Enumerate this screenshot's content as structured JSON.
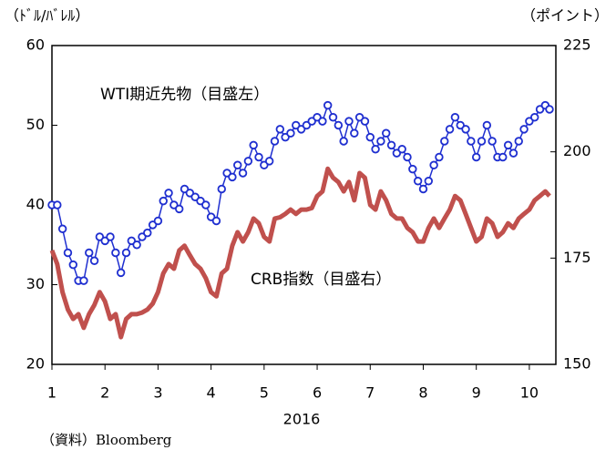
{
  "chart_data": {
    "type": "line",
    "ylabel": "（ﾄﾞﾙ/ﾊﾞﾚﾙ）",
    "y2label": "（ポイント）",
    "xlabel": "2016",
    "source": "（資料）Bloomberg",
    "x": [
      1.0,
      1.1,
      1.2,
      1.3,
      1.4,
      1.5,
      1.6,
      1.7,
      1.8,
      1.9,
      2.0,
      2.1,
      2.2,
      2.3,
      2.4,
      2.5,
      2.6,
      2.7,
      2.8,
      2.9,
      3.0,
      3.1,
      3.2,
      3.3,
      3.4,
      3.5,
      3.6,
      3.7,
      3.8,
      3.9,
      4.0,
      4.1,
      4.2,
      4.3,
      4.4,
      4.5,
      4.6,
      4.7,
      4.8,
      4.9,
      5.0,
      5.1,
      5.2,
      5.3,
      5.4,
      5.5,
      5.6,
      5.7,
      5.8,
      5.9,
      6.0,
      6.1,
      6.2,
      6.3,
      6.4,
      6.5,
      6.6,
      6.7,
      6.8,
      6.9,
      7.0,
      7.1,
      7.2,
      7.3,
      7.4,
      7.5,
      7.6,
      7.7,
      7.8,
      7.9,
      8.0,
      8.1,
      8.2,
      8.3,
      8.4,
      8.5,
      8.6,
      8.7,
      8.8,
      8.9,
      9.0,
      9.1,
      9.2,
      9.3,
      9.4,
      9.5,
      9.6,
      9.7,
      9.8,
      9.9,
      10.0,
      10.1,
      10.2,
      10.3,
      10.38
    ],
    "series": [
      {
        "name": "WTI期近先物（目盛左）",
        "color": "#1f2fd0",
        "marker": true,
        "values": [
          40,
          40,
          37,
          34,
          32.5,
          30.5,
          30.5,
          34,
          33,
          36,
          35.5,
          36,
          34,
          31.5,
          34,
          35.5,
          35,
          36,
          36.5,
          37.5,
          38,
          40.5,
          41.5,
          40,
          39.5,
          42,
          41.5,
          41,
          40.5,
          40,
          38.5,
          38,
          42,
          44,
          43.5,
          45,
          44,
          45.5,
          47.5,
          46,
          45,
          45.5,
          48,
          49.5,
          48.5,
          49,
          50,
          49.5,
          50,
          50.5,
          51,
          50.5,
          52.5,
          51,
          50,
          48,
          50.5,
          49,
          51,
          50.5,
          48.5,
          47,
          48,
          49,
          47.5,
          46.5,
          47,
          46,
          44.5,
          43,
          42,
          43,
          45,
          46,
          48,
          49.5,
          51,
          50,
          49.5,
          48,
          46,
          48,
          50,
          48,
          46,
          46,
          47.5,
          46.5,
          48,
          49.5,
          50.5,
          51,
          52,
          52.5,
          52
        ]
      },
      {
        "name": "CRB指数（目盛右）",
        "color": "#c0504d",
        "axis": "y2",
        "marker": false,
        "values": [
          176.8,
          173.6,
          167,
          162.9,
          160.7,
          161.8,
          158.6,
          161.8,
          164,
          167,
          164.8,
          160.7,
          161.8,
          156.4,
          160.7,
          161.8,
          161.8,
          162.2,
          162.9,
          164.3,
          167,
          171.4,
          173.6,
          172.5,
          176.8,
          177.9,
          175.7,
          173.6,
          172.5,
          170.3,
          167,
          166,
          171.4,
          172.5,
          177.9,
          181.1,
          178.9,
          181.1,
          184.3,
          183.2,
          180,
          178.9,
          184.3,
          184.6,
          185.4,
          186.4,
          185.4,
          186.4,
          186.4,
          186.8,
          189.6,
          190.7,
          196,
          193.9,
          192.9,
          190.7,
          192.9,
          188.6,
          195,
          193.9,
          187.5,
          186.4,
          190.7,
          188.6,
          185.4,
          184.3,
          184.3,
          182.1,
          181.1,
          178.9,
          178.9,
          182.1,
          184.3,
          182.1,
          184.3,
          186.4,
          189.6,
          188.6,
          185.4,
          182.1,
          178.9,
          180,
          184.3,
          183.2,
          180,
          181.1,
          183.2,
          182.1,
          184.3,
          185.4,
          186.4,
          188.6,
          189.6,
          190.7,
          189.6
        ]
      }
    ],
    "xlim": [
      1,
      10.5
    ],
    "xticks": [
      1,
      2,
      3,
      4,
      5,
      6,
      7,
      8,
      9,
      10
    ],
    "ylim": [
      20,
      60
    ],
    "yticks": [
      20,
      30,
      40,
      50,
      60
    ],
    "y2lim": [
      150,
      225
    ],
    "y2ticks": [
      150,
      175,
      200,
      225
    ]
  }
}
